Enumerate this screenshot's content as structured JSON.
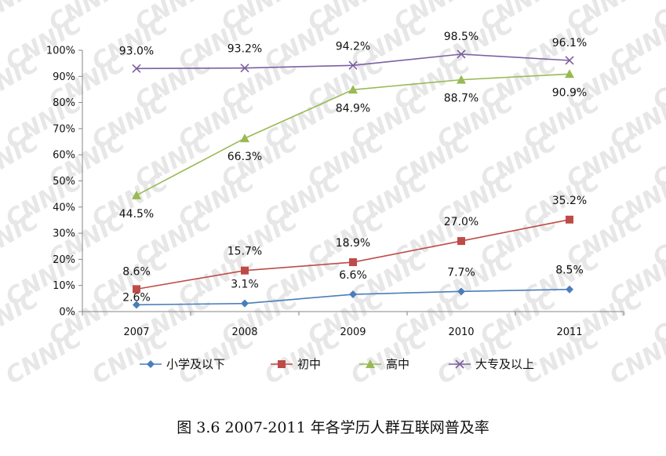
{
  "chart_data": {
    "type": "line",
    "categories": [
      "2007",
      "2008",
      "2009",
      "2010",
      "2011"
    ],
    "ylim": [
      0,
      100
    ],
    "yticks": [
      "0%",
      "10%",
      "20%",
      "30%",
      "40%",
      "50%",
      "60%",
      "70%",
      "80%",
      "90%",
      "100%"
    ],
    "legend_position": "bottom",
    "grid": false,
    "watermark": "CNNIC",
    "series": [
      {
        "name": "小学及以下",
        "values": [
          2.6,
          3.1,
          6.6,
          7.7,
          8.5
        ],
        "labels": [
          "2.6%",
          "3.1%",
          "6.6%",
          "7.7%",
          "8.5%"
        ],
        "color": "#4a7ebb",
        "marker": "diamond"
      },
      {
        "name": "初中",
        "values": [
          8.6,
          15.7,
          18.9,
          27.0,
          35.2
        ],
        "labels": [
          "8.6%",
          "15.7%",
          "18.9%",
          "27.0%",
          "35.2%"
        ],
        "color": "#be4b48",
        "marker": "square"
      },
      {
        "name": "高中",
        "values": [
          44.5,
          66.3,
          84.9,
          88.7,
          90.9
        ],
        "labels": [
          "44.5%",
          "66.3%",
          "84.9%",
          "88.7%",
          "90.9%"
        ],
        "color": "#98b954",
        "marker": "triangle"
      },
      {
        "name": "大专及以上",
        "values": [
          93.0,
          93.2,
          94.2,
          98.5,
          96.1
        ],
        "labels": [
          "93.0%",
          "93.2%",
          "94.2%",
          "98.5%",
          "96.1%"
        ],
        "color": "#7d60a0",
        "marker": "x"
      }
    ]
  },
  "caption": "图  3.6    2007-2011 年各学历人群互联网普及率"
}
